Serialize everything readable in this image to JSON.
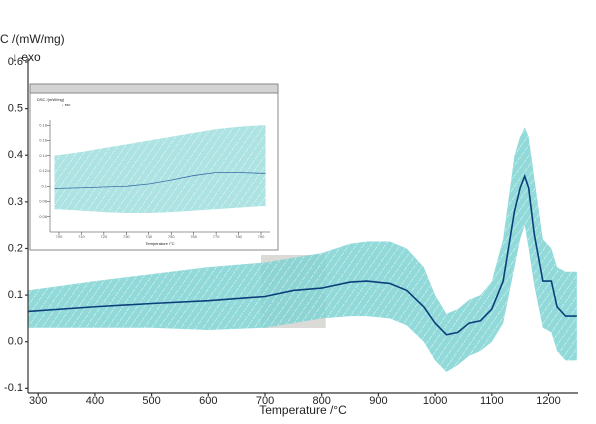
{
  "chart_data": [
    {
      "type": "line",
      "y_label": "C /(mW/mg)",
      "annotation": "↓ exo",
      "x_label": "Temperature /°C",
      "color": "#0b3f7a",
      "band_color": "#7fd3d3",
      "xlim": [
        282,
        1252
      ],
      "xticks": [
        300,
        400,
        500,
        600,
        700,
        800,
        900,
        1000,
        1100,
        1200
      ],
      "ylim": [
        -0.11,
        0.63
      ],
      "yticks": [
        -0.1,
        {
          "value": 0,
          "label": "0.0"
        },
        0.1,
        0.2,
        0.3,
        0.4,
        0.5,
        0.6
      ],
      "x": [
        282,
        400,
        500,
        600,
        700,
        750,
        800,
        850,
        880,
        920,
        950,
        980,
        1000,
        1020,
        1040,
        1060,
        1080,
        1100,
        1120,
        1140,
        1150,
        1158,
        1165,
        1175,
        1190,
        1205,
        1215,
        1230,
        1250
      ],
      "values": [
        0.065,
        0.075,
        0.082,
        0.088,
        0.097,
        0.11,
        0.115,
        0.128,
        0.13,
        0.125,
        0.11,
        0.075,
        0.04,
        0.015,
        0.02,
        0.04,
        0.045,
        0.07,
        0.13,
        0.28,
        0.33,
        0.355,
        0.33,
        0.23,
        0.13,
        0.13,
        0.075,
        0.055,
        0.055
      ],
      "band_upper": [
        0.11,
        0.13,
        0.145,
        0.16,
        0.17,
        0.18,
        0.19,
        0.21,
        0.215,
        0.215,
        0.2,
        0.16,
        0.1,
        0.06,
        0.07,
        0.09,
        0.1,
        0.13,
        0.22,
        0.4,
        0.44,
        0.46,
        0.44,
        0.35,
        0.22,
        0.2,
        0.16,
        0.15,
        0.15
      ],
      "band_lower": [
        0.03,
        0.03,
        0.03,
        0.025,
        0.03,
        0.04,
        0.05,
        0.055,
        0.055,
        0.05,
        0.035,
        0.0,
        -0.04,
        -0.065,
        -0.05,
        -0.03,
        -0.02,
        0.0,
        0.04,
        0.16,
        0.22,
        0.25,
        0.2,
        0.12,
        0.03,
        0.02,
        -0.02,
        -0.04,
        -0.04
      ]
    },
    {
      "type": "line",
      "y_label": "DSC /(mW/mg)",
      "annotation": "↓ exo",
      "x_label": "Temperature /°C",
      "color": "#3a6ea8",
      "band_color": "#9fdede",
      "xlim": [
        696,
        794
      ],
      "xticks": [
        700,
        710,
        720,
        730,
        740,
        750,
        760,
        770,
        780,
        790
      ],
      "ylim": [
        0.04,
        0.2
      ],
      "yticks": [
        0.06,
        0.08,
        0.1,
        0.12,
        0.14,
        0.16,
        0.18
      ],
      "x": [
        698,
        710,
        720,
        730,
        740,
        750,
        760,
        770,
        780,
        790,
        792
      ],
      "values": [
        0.097,
        0.098,
        0.099,
        0.1,
        0.103,
        0.108,
        0.114,
        0.118,
        0.118,
        0.117,
        0.117
      ],
      "band_upper": [
        0.14,
        0.145,
        0.15,
        0.155,
        0.16,
        0.165,
        0.17,
        0.175,
        0.178,
        0.18,
        0.18
      ],
      "band_lower": [
        0.07,
        0.068,
        0.066,
        0.065,
        0.065,
        0.066,
        0.068,
        0.07,
        0.072,
        0.074,
        0.074
      ]
    }
  ]
}
